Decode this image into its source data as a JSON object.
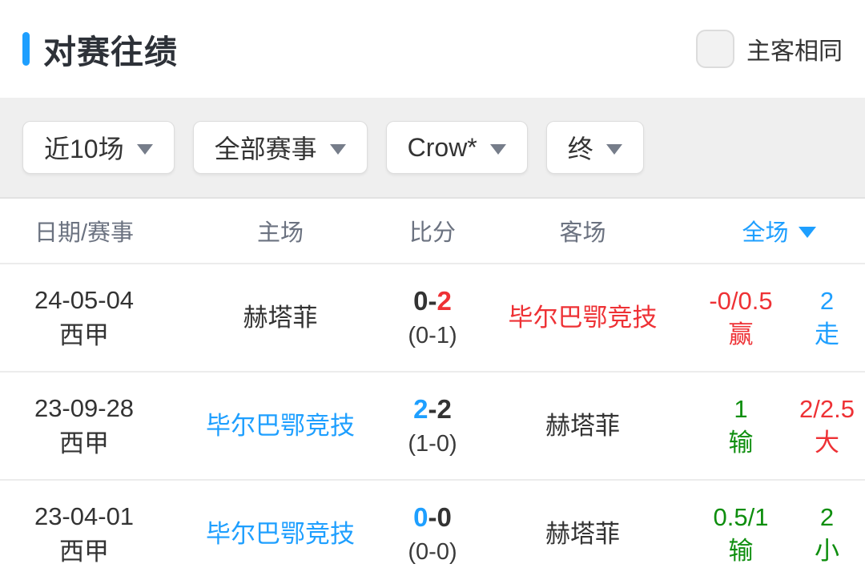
{
  "colors": {
    "blue": "#1E9FFF",
    "red": "#EE3135",
    "green": "#0E8E0E",
    "dark": "#333333"
  },
  "header": {
    "title": "对赛往绩",
    "checkbox_label": "主客相同",
    "checkbox_checked": false
  },
  "filters": {
    "recent": {
      "label": "近10场"
    },
    "competition": {
      "label": "全部赛事"
    },
    "company": {
      "label": "Crow*"
    },
    "status": {
      "label": "终"
    }
  },
  "table": {
    "score_separator": "-",
    "columns": {
      "date": "日期/赛事",
      "home": "主场",
      "score": "比分",
      "away": "客场",
      "full": "全场"
    },
    "rows": [
      {
        "date": "24-05-04",
        "league": "西甲",
        "home": {
          "name": "赫塔菲",
          "color": "dark"
        },
        "score": {
          "home": "0",
          "away": "2",
          "home_color": "dark",
          "away_color": "red",
          "half_time": "(0-1)"
        },
        "away": {
          "name": "毕尔巴鄂竞技",
          "color": "red"
        },
        "handicap": {
          "line": "-0/0.5",
          "result": "赢",
          "color": "red"
        },
        "over_under": {
          "line": "2",
          "result": "走",
          "color": "blue"
        }
      },
      {
        "date": "23-09-28",
        "league": "西甲",
        "home": {
          "name": "毕尔巴鄂竞技",
          "color": "blue"
        },
        "score": {
          "home": "2",
          "away": "2",
          "home_color": "blue",
          "away_color": "dark",
          "half_time": "(1-0)"
        },
        "away": {
          "name": "赫塔菲",
          "color": "dark"
        },
        "handicap": {
          "line": "1",
          "result": "输",
          "color": "green"
        },
        "over_under": {
          "line": "2/2.5",
          "result": "大",
          "color": "red"
        }
      },
      {
        "date": "23-04-01",
        "league": "西甲",
        "home": {
          "name": "毕尔巴鄂竞技",
          "color": "blue"
        },
        "score": {
          "home": "0",
          "away": "0",
          "home_color": "blue",
          "away_color": "dark",
          "half_time": "(0-0)"
        },
        "away": {
          "name": "赫塔菲",
          "color": "dark"
        },
        "handicap": {
          "line": "0.5/1",
          "result": "输",
          "color": "green"
        },
        "over_under": {
          "line": "2",
          "result": "小",
          "color": "green"
        }
      }
    ]
  }
}
